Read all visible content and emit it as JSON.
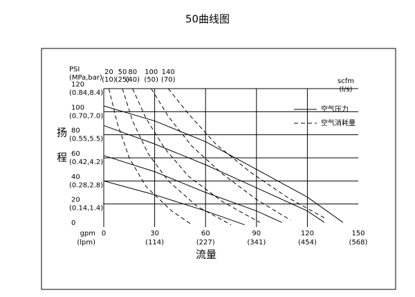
{
  "chart_data": {
    "type": "line",
    "title": "50曲线图",
    "y_label": "PSI",
    "y_label_sub": "(MPa,bar)",
    "y_label_side": [
      "扬",
      "程"
    ],
    "x_label": "流量",
    "x_unit": "gpm",
    "x_unit_sub": "(lpm)",
    "y2_unit": "scfm",
    "y2_unit_sub": "(l/s)",
    "xlim": [
      0,
      150
    ],
    "ylim": [
      0,
      120
    ],
    "xticks": [
      0,
      30,
      60,
      90,
      120,
      150
    ],
    "xtick_sublabels": [
      null,
      "(114)",
      "(227)",
      "(341)",
      "(454)",
      "(568)"
    ],
    "yticks": [
      0,
      20,
      40,
      60,
      80,
      100,
      120
    ],
    "ytick_sublabels": [
      null,
      "(0.14,1.4)",
      "(0.28,2.8)",
      "(0.42,4.2)",
      "(0.55,5.5)",
      "(0.70,7.0)",
      "(0.84,8.4)"
    ],
    "grid": true,
    "color": "#000000",
    "legend": [
      {
        "label": "空气压力",
        "style": "solid"
      },
      {
        "label": "空气消耗量",
        "style": "dashed"
      }
    ],
    "series": [
      {
        "style": "solid",
        "x": [
          0,
          30,
          60,
          90,
          120,
          141
        ],
        "values": [
          105,
          92,
          74,
          50,
          26,
          4
        ]
      },
      {
        "style": "solid",
        "x": [
          0,
          30,
          60,
          90,
          120,
          130
        ],
        "values": [
          88,
          72,
          54,
          34,
          14,
          4
        ]
      },
      {
        "style": "solid",
        "x": [
          0,
          30,
          60,
          90,
          105
        ],
        "values": [
          62,
          48,
          30,
          14,
          4
        ]
      },
      {
        "style": "solid",
        "x": [
          0,
          30,
          60,
          83
        ],
        "values": [
          40,
          28,
          14,
          2
        ]
      },
      {
        "style": "dashed",
        "label": "20",
        "sub": "(10)",
        "x": [
          3,
          8,
          15,
          25,
          40,
          52
        ],
        "values": [
          120,
          90,
          60,
          35,
          14,
          2
        ]
      },
      {
        "style": "dashed",
        "label": "50",
        "sub": "(25)",
        "x": [
          11,
          17,
          26,
          38,
          55,
          75
        ],
        "values": [
          120,
          92,
          64,
          40,
          18,
          2
        ]
      },
      {
        "style": "dashed",
        "label": "80",
        "sub": "(40)",
        "x": [
          17,
          25,
          36,
          50,
          70,
          92
        ],
        "values": [
          120,
          94,
          68,
          44,
          22,
          4
        ]
      },
      {
        "style": "dashed",
        "label": "100",
        "sub": "(50)",
        "x": [
          28,
          38,
          52,
          70,
          90,
          110
        ],
        "values": [
          120,
          96,
          70,
          46,
          24,
          6
        ]
      },
      {
        "style": "dashed",
        "label": "140",
        "sub": "(70)",
        "x": [
          38,
          50,
          66,
          86,
          108,
          130
        ],
        "values": [
          120,
          98,
          72,
          48,
          26,
          8
        ]
      }
    ]
  }
}
